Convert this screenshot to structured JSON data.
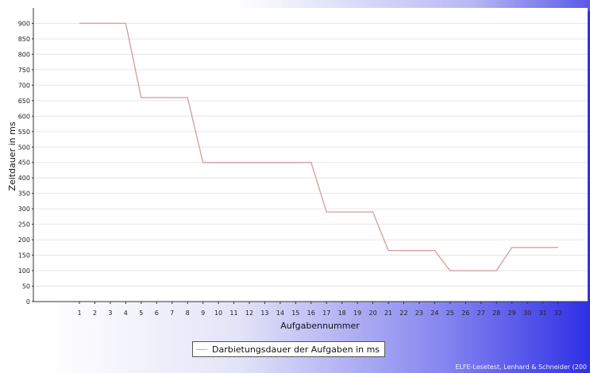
{
  "chart_data": {
    "type": "line",
    "xlabel": "Aufgabennummer",
    "ylabel": "Zeitdauer in ms",
    "ylim": [
      0,
      950
    ],
    "yticks": [
      0,
      50,
      100,
      150,
      200,
      250,
      300,
      350,
      400,
      450,
      500,
      550,
      600,
      650,
      700,
      750,
      800,
      850,
      900
    ],
    "x": [
      1,
      2,
      3,
      4,
      5,
      6,
      7,
      8,
      9,
      10,
      11,
      12,
      13,
      14,
      15,
      16,
      17,
      18,
      19,
      20,
      21,
      22,
      23,
      24,
      25,
      26,
      27,
      28,
      29,
      30,
      31,
      32
    ],
    "series": [
      {
        "name": "Darbietungsdauer der Aufgaben in ms",
        "color": "#d9a0a0",
        "values": [
          900,
          900,
          900,
          900,
          660,
          660,
          660,
          660,
          450,
          450,
          450,
          450,
          450,
          450,
          450,
          450,
          290,
          290,
          290,
          290,
          165,
          165,
          165,
          165,
          100,
          100,
          100,
          100,
          175,
          175,
          175,
          175
        ]
      }
    ],
    "grid": true,
    "legend_position": "bottom"
  },
  "legend": {
    "label": "Darbietungsdauer der Aufgaben in ms"
  },
  "credit": "ELFE-Lesetest, Lenhard & Schneider (200"
}
